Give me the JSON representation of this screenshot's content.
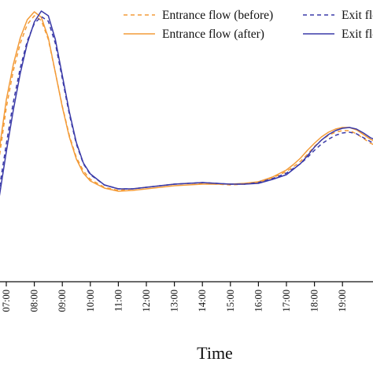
{
  "chart_data": {
    "type": "line",
    "xlabel": "Time",
    "x_ticks": [
      "07:00",
      "08:00",
      "09:00",
      "10:00",
      "11:00",
      "12:00",
      "13:00",
      "14:00",
      "15:00",
      "16:00",
      "17:00",
      "18:00",
      "19:00"
    ],
    "grid": false,
    "legend_position": "top-right",
    "series": [
      {
        "name": "Entrance flow (before)",
        "color": "#F39B38",
        "dash": true,
        "x": [
          6.5,
          6.75,
          7.0,
          7.25,
          7.5,
          7.75,
          8.0,
          8.25,
          8.5,
          8.75,
          9.0,
          9.25,
          9.5,
          9.75,
          10.0,
          10.5,
          11.0,
          11.5,
          12.0,
          12.5,
          13.0,
          13.5,
          14.0,
          14.5,
          15.0,
          15.5,
          16.0,
          16.5,
          17.0,
          17.25,
          17.5,
          17.75,
          18.0,
          18.25,
          18.5,
          18.75,
          19.0,
          19.25,
          19.5,
          19.75,
          20.0,
          20.25
        ],
        "y": [
          268,
          200,
          137,
          90,
          55,
          31,
          20,
          26,
          50,
          92,
          135,
          172,
          200,
          217,
          228,
          238,
          242,
          240,
          238,
          236,
          234,
          233,
          233,
          234,
          235,
          234,
          232,
          226,
          218,
          212,
          205,
          196,
          186,
          178,
          172,
          168,
          166,
          166,
          170,
          176,
          182,
          186
        ]
      },
      {
        "name": "Entrance flow (after)",
        "color": "#F39B38",
        "dash": false,
        "x": [
          6.5,
          6.75,
          7.0,
          7.25,
          7.5,
          7.75,
          8.0,
          8.25,
          8.5,
          8.75,
          9.0,
          9.25,
          9.5,
          9.75,
          10.0,
          10.5,
          11.0,
          11.5,
          12.0,
          12.5,
          13.0,
          13.5,
          14.0,
          14.5,
          15.0,
          15.5,
          16.0,
          16.5,
          17.0,
          17.25,
          17.5,
          17.75,
          18.0,
          18.25,
          18.5,
          18.75,
          19.0,
          19.25,
          19.5,
          19.75,
          20.0,
          20.25
        ],
        "y": [
          258,
          190,
          127,
          82,
          48,
          25,
          15,
          22,
          48,
          92,
          136,
          174,
          202,
          220,
          230,
          239,
          243,
          242,
          240,
          238,
          236,
          235,
          234,
          234,
          234,
          233,
          231,
          225,
          216,
          209,
          201,
          191,
          182,
          174,
          168,
          164,
          162,
          162,
          165,
          171,
          177,
          181
        ]
      },
      {
        "name": "Exit flow (before)",
        "color": "#3A3AA8",
        "dash": true,
        "x": [
          6.5,
          6.75,
          7.0,
          7.25,
          7.5,
          7.75,
          8.0,
          8.25,
          8.5,
          8.75,
          9.0,
          9.25,
          9.5,
          9.75,
          10.0,
          10.5,
          11.0,
          11.5,
          12.0,
          12.5,
          13.0,
          13.5,
          14.0,
          14.5,
          15.0,
          15.5,
          16.0,
          16.5,
          17.0,
          17.25,
          17.5,
          17.75,
          18.0,
          18.25,
          18.5,
          18.75,
          19.0,
          19.25,
          19.5,
          19.75,
          20.0,
          20.25
        ],
        "y": [
          290,
          240,
          183,
          130,
          86,
          52,
          30,
          21,
          27,
          55,
          100,
          145,
          183,
          208,
          222,
          235,
          240,
          240,
          238,
          236,
          234,
          233,
          232,
          233,
          234,
          234,
          232,
          227,
          220,
          214,
          208,
          200,
          191,
          183,
          177,
          172,
          169,
          168,
          170,
          175,
          180,
          184
        ]
      },
      {
        "name": "Exit flow (after)",
        "color": "#3A3AA8",
        "dash": false,
        "x": [
          6.5,
          6.75,
          7.0,
          7.25,
          7.5,
          7.75,
          8.0,
          8.25,
          8.5,
          8.75,
          9.0,
          9.25,
          9.5,
          9.75,
          10.0,
          10.5,
          11.0,
          11.5,
          12.0,
          12.5,
          13.0,
          13.5,
          14.0,
          14.5,
          15.0,
          15.5,
          16.0,
          16.5,
          17.0,
          17.25,
          17.5,
          17.75,
          18.0,
          18.25,
          18.5,
          18.75,
          19.0,
          19.25,
          19.5,
          19.75,
          20.0,
          20.25
        ],
        "y": [
          300,
          250,
          193,
          140,
          93,
          55,
          28,
          14,
          20,
          50,
          96,
          142,
          181,
          207,
          221,
          235,
          240,
          240,
          238,
          236,
          234,
          233,
          232,
          233,
          234,
          234,
          233,
          228,
          222,
          215,
          208,
          198,
          187,
          178,
          171,
          166,
          163,
          162,
          164,
          169,
          175,
          179
        ]
      }
    ]
  }
}
